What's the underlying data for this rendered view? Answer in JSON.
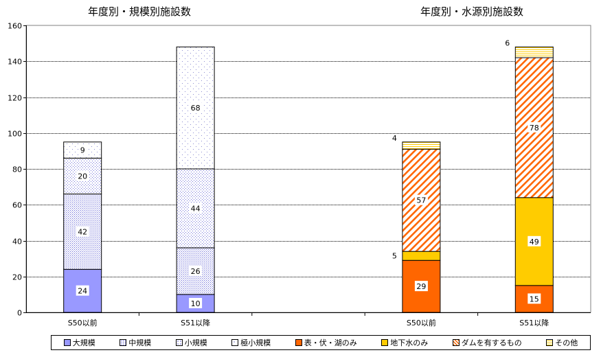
{
  "chart_data": [
    {
      "type": "bar",
      "stacked": true,
      "title": "年度別・規模別施設数",
      "categories": [
        "S50以前",
        "S51以降"
      ],
      "ylim": [
        0,
        160
      ],
      "yticks": [
        0,
        20,
        40,
        60,
        80,
        100,
        120,
        140,
        160
      ],
      "grid": true,
      "series": [
        {
          "name": "大規模",
          "values": [
            24,
            10
          ],
          "color": "#9999ff",
          "pattern": "solid"
        },
        {
          "name": "中規模",
          "values": [
            42,
            26
          ],
          "color": "#9999ff",
          "pattern": "dense-dots"
        },
        {
          "name": "小規模",
          "values": [
            20,
            44
          ],
          "color": "#9999ff",
          "pattern": "medium-dots"
        },
        {
          "name": "極小規模",
          "values": [
            9,
            68
          ],
          "color": "#9999ff",
          "pattern": "sparse-dots"
        }
      ]
    },
    {
      "type": "bar",
      "stacked": true,
      "title": "年度別・水源別施設数",
      "categories": [
        "S50以前",
        "S51以降"
      ],
      "ylim": [
        0,
        160
      ],
      "grid": true,
      "series": [
        {
          "name": "表・伏・湖のみ",
          "values": [
            29,
            15
          ],
          "color": "#ff6600",
          "pattern": "solid"
        },
        {
          "name": "地下水のみ",
          "values": [
            5,
            49
          ],
          "color": "#ffcc00",
          "pattern": "solid"
        },
        {
          "name": "ダムを有するもの",
          "values": [
            57,
            78
          ],
          "color": "#ff6600",
          "pattern": "diagonal-stripes"
        },
        {
          "name": "その他",
          "values": [
            4,
            6
          ],
          "color": "#ffcc00",
          "pattern": "horizontal-lines"
        }
      ]
    }
  ],
  "legend": {
    "position": "bottom",
    "items": [
      {
        "label": "大規模"
      },
      {
        "label": "中規模"
      },
      {
        "label": "小規模"
      },
      {
        "label": "極小規模"
      },
      {
        "label": "表・伏・湖のみ"
      },
      {
        "label": "地下水のみ"
      },
      {
        "label": "ダムを有するもの"
      },
      {
        "label": "その他"
      }
    ]
  }
}
